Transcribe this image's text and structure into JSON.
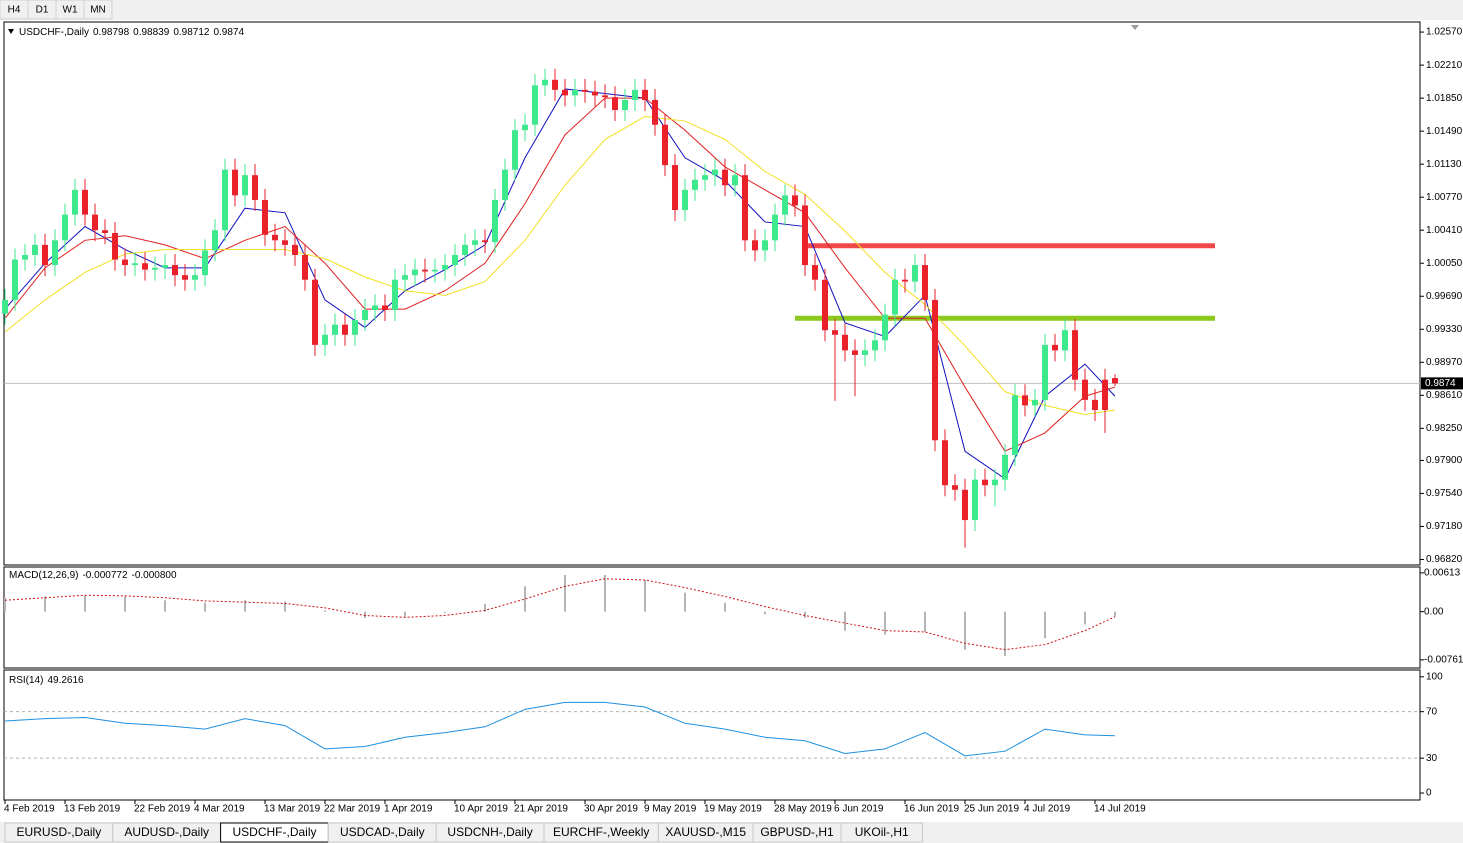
{
  "ui": {
    "timeframes": [
      "H4",
      "D1",
      "W1",
      "MN"
    ],
    "tabs": [
      "EURUSD-,Daily",
      "AUDUSD-,Daily",
      "USDCHF-,Daily",
      "USDCAD-,Daily",
      "USDCNH-,Daily",
      "EURCHF-,Weekly",
      "XAUUSD-,M15",
      "GBPUSD-,H1",
      "UKOil-,H1"
    ],
    "active_tab": 2
  },
  "chart_data": {
    "type": "candlestick",
    "ylim": [
      0.9676,
      1.0268
    ],
    "yticks": [
      {
        "value": 1.0257,
        "label": "1.02570"
      },
      {
        "value": 1.0221,
        "label": "1.02210"
      },
      {
        "value": 1.0185,
        "label": "1.01850"
      },
      {
        "value": 1.0149,
        "label": "1.01490"
      },
      {
        "value": 1.0113,
        "label": "1.01130"
      },
      {
        "value": 1.0077,
        "label": "1.00770"
      },
      {
        "value": 1.0041,
        "label": "1.00410"
      },
      {
        "value": 1.0005,
        "label": "1.00050"
      },
      {
        "value": 0.9969,
        "label": "0.99690"
      },
      {
        "value": 0.9933,
        "label": "0.99330"
      },
      {
        "value": 0.9897,
        "label": "0.98970"
      },
      {
        "value": 0.9861,
        "label": "0.98610"
      },
      {
        "value": 0.9825,
        "label": "0.98250"
      },
      {
        "value": 0.979,
        "label": "0.97900"
      },
      {
        "value": 0.9754,
        "label": "0.97540"
      },
      {
        "value": 0.9718,
        "label": "0.97180"
      },
      {
        "value": 0.9682,
        "label": "0.96820"
      }
    ],
    "categories": [
      "4 Feb 2019",
      null,
      null,
      null,
      null,
      null,
      "13 Feb 2019",
      null,
      null,
      null,
      null,
      null,
      null,
      "22 Feb 2019",
      null,
      null,
      null,
      null,
      null,
      "4 Mar 2019",
      null,
      null,
      null,
      null,
      null,
      null,
      "13 Mar 2019",
      null,
      null,
      null,
      null,
      null,
      "22 Mar 2019",
      null,
      null,
      null,
      null,
      null,
      "1 Apr 2019",
      null,
      null,
      null,
      null,
      null,
      null,
      "10 Apr 2019",
      null,
      null,
      null,
      null,
      null,
      "21 Apr 2019",
      null,
      null,
      null,
      null,
      null,
      null,
      "30 Apr 2019",
      null,
      null,
      null,
      null,
      null,
      "9 May 2019",
      null,
      null,
      null,
      null,
      null,
      "19 May 2019",
      null,
      null,
      null,
      null,
      null,
      null,
      "28 May 2019",
      null,
      null,
      null,
      null,
      null,
      "6 Jun 2019",
      null,
      null,
      null,
      null,
      null,
      null,
      "16 Jun 2019",
      null,
      null,
      null,
      null,
      null,
      "25 Jun 2019",
      null,
      null,
      null,
      null,
      null,
      "4 Jul 2019",
      null,
      null,
      null,
      null,
      null,
      null,
      "14 Jul 2019",
      null,
      null
    ],
    "series": [
      {
        "name": "USDCHF-,Daily",
        "up_color": "#3ee88c",
        "down_color": "#e8212b",
        "ohlc": [
          [
            0.995,
            0.9977,
            0.9938,
            0.9965
          ],
          [
            0.9965,
            1.0021,
            0.9953,
            1.0009
          ],
          [
            1.0009,
            1.0026,
            0.9997,
            1.0014
          ],
          [
            1.0014,
            1.0037,
            1.0002,
            1.0025
          ],
          [
            1.0025,
            1.0037,
            0.9991,
            1.0003
          ],
          [
            1.0003,
            1.0042,
            0.9991,
            1.003
          ],
          [
            1.003,
            1.007,
            1.0018,
            1.0058
          ],
          [
            1.0058,
            1.0097,
            1.0046,
            1.0085
          ],
          [
            1.0085,
            1.0097,
            1.0046,
            1.0058
          ],
          [
            1.0058,
            1.007,
            1.0029,
            1.0041
          ],
          [
            1.0041,
            1.0053,
            1.0026,
            1.0038
          ],
          [
            1.0038,
            1.005,
            0.9997,
            1.0009
          ],
          [
            1.0009,
            1.0021,
            0.9991,
            1.0003
          ],
          [
            1.0003,
            1.0017,
            0.9991,
            1.0005
          ],
          [
            1.0005,
            1.0017,
            0.9986,
            0.9998
          ],
          [
            0.9998,
            1.0012,
            0.9986,
            1.0
          ],
          [
            1.0,
            1.0015,
            0.9988,
            1.0003
          ],
          [
            1.0003,
            1.0015,
            0.998,
            0.9992
          ],
          [
            0.9992,
            1.0004,
            0.9975,
            0.9987
          ],
          [
            0.9987,
            1.0004,
            0.9975,
            0.9992
          ],
          [
            0.9992,
            1.0031,
            0.998,
            1.0019
          ],
          [
            1.0019,
            1.0053,
            1.0007,
            1.0041
          ],
          [
            1.0041,
            1.0119,
            1.0029,
            1.0107
          ],
          [
            1.0107,
            1.0119,
            1.0067,
            1.0079
          ],
          [
            1.0079,
            1.0113,
            1.0067,
            1.0101
          ],
          [
            1.0101,
            1.0113,
            1.0062,
            1.0074
          ],
          [
            1.0074,
            1.0086,
            1.0024,
            1.0036
          ],
          [
            1.0036,
            1.0048,
            1.0018,
            1.003
          ],
          [
            1.003,
            1.0042,
            1.0013,
            1.0025
          ],
          [
            1.0025,
            1.0037,
            1.0002,
            1.0014
          ],
          [
            1.0014,
            1.0026,
            0.9975,
            0.9987
          ],
          [
            0.9987,
            0.9999,
            0.9904,
            0.9916
          ],
          [
            0.9916,
            0.9939,
            0.9904,
            0.9927
          ],
          [
            0.9927,
            0.995,
            0.9915,
            0.9938
          ],
          [
            0.9938,
            0.995,
            0.9915,
            0.9927
          ],
          [
            0.9927,
            0.9955,
            0.9915,
            0.9943
          ],
          [
            0.9943,
            0.9966,
            0.9931,
            0.9954
          ],
          [
            0.9954,
            0.9971,
            0.9942,
            0.9959
          ],
          [
            0.9959,
            0.9971,
            0.9942,
            0.9954
          ],
          [
            0.9954,
            0.9999,
            0.9942,
            0.9987
          ],
          [
            0.9987,
            1.0004,
            0.9975,
            0.9992
          ],
          [
            0.9992,
            1.001,
            0.998,
            0.9998
          ],
          [
            0.9998,
            1.001,
            0.9984,
            0.9996
          ],
          [
            0.9996,
            1.001,
            0.9984,
            0.9998
          ],
          [
            0.9998,
            1.0015,
            0.9986,
            1.0003
          ],
          [
            1.0003,
            1.0026,
            0.9991,
            1.0014
          ],
          [
            1.0014,
            1.0037,
            1.0002,
            1.0025
          ],
          [
            1.0025,
            1.0042,
            1.0013,
            1.003
          ],
          [
            1.003,
            1.0042,
            1.0016,
            1.0028
          ],
          [
            1.0028,
            1.0086,
            1.0016,
            1.0074
          ],
          [
            1.0074,
            1.0119,
            1.0062,
            1.0107
          ],
          [
            1.0107,
            1.0162,
            1.0095,
            1.015
          ],
          [
            1.015,
            1.0168,
            1.0138,
            1.0156
          ],
          [
            1.0156,
            1.0211,
            1.0144,
            1.0199
          ],
          [
            1.0199,
            1.0217,
            1.0187,
            1.0205
          ],
          [
            1.0205,
            1.0217,
            1.0182,
            1.0194
          ],
          [
            1.0194,
            1.0206,
            1.0176,
            1.0188
          ],
          [
            1.0188,
            1.0206,
            1.0176,
            1.0194
          ],
          [
            1.0194,
            1.0206,
            1.018,
            1.0192
          ],
          [
            1.0192,
            1.0204,
            1.0176,
            1.0188
          ],
          [
            1.0188,
            1.02,
            1.0174,
            1.0186
          ],
          [
            1.0186,
            1.0198,
            1.016,
            1.0172
          ],
          [
            1.0172,
            1.0195,
            1.016,
            1.0183
          ],
          [
            1.0183,
            1.0206,
            1.0171,
            1.0194
          ],
          [
            1.0194,
            1.0206,
            1.0171,
            1.0183
          ],
          [
            1.0183,
            1.0195,
            1.0144,
            1.0156
          ],
          [
            1.0156,
            1.0168,
            1.01,
            1.0112
          ],
          [
            1.0112,
            1.0124,
            1.0051,
            1.0063
          ],
          [
            1.0063,
            1.0097,
            1.0051,
            1.0085
          ],
          [
            1.0085,
            1.0108,
            1.0073,
            1.0096
          ],
          [
            1.0096,
            1.0113,
            1.0084,
            1.0101
          ],
          [
            1.0101,
            1.0119,
            1.0089,
            1.0107
          ],
          [
            1.0107,
            1.0119,
            1.0078,
            1.009
          ],
          [
            1.009,
            1.0113,
            1.0078,
            1.0101
          ],
          [
            1.0101,
            1.0113,
            1.0018,
            1.003
          ],
          [
            1.003,
            1.0042,
            1.0007,
            1.0019
          ],
          [
            1.0019,
            1.0042,
            1.0007,
            1.003
          ],
          [
            1.003,
            1.007,
            1.0018,
            1.0058
          ],
          [
            1.0058,
            1.0091,
            1.0046,
            1.0079
          ],
          [
            1.0079,
            1.0091,
            1.0056,
            1.0068
          ],
          [
            1.0068,
            1.008,
            0.9991,
            1.0003
          ],
          [
            1.0003,
            1.0015,
            0.9975,
            0.9987
          ],
          [
            0.9987,
            0.9999,
            0.992,
            0.9932
          ],
          [
            0.9932,
            0.9944,
            0.9855,
            0.9927
          ],
          [
            0.9927,
            0.9939,
            0.9898,
            0.991
          ],
          [
            0.991,
            0.9922,
            0.986,
            0.9905
          ],
          [
            0.9905,
            0.9922,
            0.9893,
            0.991
          ],
          [
            0.991,
            0.9933,
            0.9898,
            0.9921
          ],
          [
            0.9921,
            0.9961,
            0.9909,
            0.9949
          ],
          [
            0.9949,
            0.9999,
            0.9937,
            0.9987
          ],
          [
            0.9987,
            0.9999,
            0.9973,
            0.9985
          ],
          [
            0.9985,
            1.0015,
            0.9973,
            1.0003
          ],
          [
            1.0003,
            1.0015,
            0.9953,
            0.9965
          ],
          [
            0.9965,
            0.9977,
            0.98,
            0.9812
          ],
          [
            0.9812,
            0.9824,
            0.9751,
            0.9763
          ],
          [
            0.9763,
            0.9775,
            0.9746,
            0.9758
          ],
          [
            0.9758,
            0.977,
            0.9695,
            0.9725
          ],
          [
            0.9725,
            0.9781,
            0.9713,
            0.9769
          ],
          [
            0.9769,
            0.9781,
            0.9751,
            0.9763
          ],
          [
            0.9763,
            0.9781,
            0.974,
            0.9769
          ],
          [
            0.9769,
            0.9808,
            0.9757,
            0.9796
          ],
          [
            0.9796,
            0.9873,
            0.9784,
            0.9861
          ],
          [
            0.9861,
            0.9873,
            0.9838,
            0.985
          ],
          [
            0.985,
            0.9868,
            0.9838,
            0.9856
          ],
          [
            0.9856,
            0.9928,
            0.9844,
            0.9916
          ],
          [
            0.9916,
            0.9928,
            0.9898,
            0.991
          ],
          [
            0.991,
            0.9944,
            0.9898,
            0.9932
          ],
          [
            0.9932,
            0.9944,
            0.9866,
            0.9878
          ],
          [
            0.9878,
            0.989,
            0.9844,
            0.9856
          ],
          [
            0.9856,
            0.9868,
            0.9833,
            0.9845
          ],
          [
            0.9878,
            0.989,
            0.982,
            0.9845
          ],
          [
            0.98798,
            0.98839,
            0.98712,
            0.9874
          ]
        ]
      }
    ],
    "levels": [
      {
        "value": 1.0024,
        "color": "#f0484a",
        "from": 80,
        "to": 121
      },
      {
        "value": 0.9945,
        "color": "#8cc81e",
        "from": 79,
        "to": 121
      }
    ],
    "sample_x": [
      0,
      4,
      8,
      12,
      16,
      20,
      24,
      28,
      32,
      36,
      40,
      44,
      48,
      52,
      56,
      60,
      64,
      68,
      72,
      76,
      80,
      84,
      88,
      92,
      96,
      100,
      104,
      108,
      111
    ],
    "overlays": [
      {
        "color": "#1010c0",
        "values": [
          0.9955,
          1.0005,
          1.0045,
          1.002,
          1.0,
          1.0,
          1.0065,
          1.006,
          0.9965,
          0.9935,
          0.9975,
          0.9998,
          1.0025,
          1.012,
          1.0195,
          1.019,
          1.0185,
          1.012,
          1.0095,
          1.005,
          1.0045,
          0.994,
          0.9925,
          0.997,
          0.98,
          0.977,
          0.986,
          0.9895,
          0.986
        ]
      },
      {
        "color": "#e02020",
        "values": [
          0.9945,
          1.0,
          1.003,
          1.0035,
          1.0025,
          1.001,
          1.003,
          1.0045,
          1.0005,
          0.9955,
          0.9955,
          0.9975,
          1.0005,
          1.007,
          1.0145,
          1.0185,
          1.0185,
          1.015,
          1.011,
          1.0085,
          1.006,
          1.0,
          0.9945,
          0.9945,
          0.987,
          0.98,
          0.982,
          0.986,
          0.987
        ]
      },
      {
        "color": "#f0e020",
        "values": [
          0.993,
          0.9965,
          0.9995,
          1.0015,
          1.002,
          1.002,
          1.002,
          1.002,
          1.001,
          0.999,
          0.9975,
          0.997,
          0.9985,
          1.003,
          1.009,
          1.014,
          1.0165,
          1.016,
          1.014,
          1.0105,
          1.008,
          1.004,
          0.9995,
          0.996,
          0.9915,
          0.9865,
          0.985,
          0.984,
          0.9845
        ]
      }
    ],
    "macd": {
      "label": "MACD(12,26,9)",
      "header_values": [
        -0.000772,
        {
          "value": -0.0008,
          "label": "-0.000800"
        }
      ],
      "ylim": [
        -0.0089,
        0.0069
      ],
      "yticks": [
        0.00613,
        {
          "value": 0,
          "label": "0.00"
        },
        -0.007612
      ],
      "histogram_color": "#b4b4b4",
      "signal_color": "#d01010",
      "histogram": [
        0.0022,
        0.0024,
        0.0026,
        0.0024,
        0.0018,
        0.0014,
        0.0018,
        0.0016,
        0.0002,
        -0.001,
        -0.0008,
        -0.0002,
        0.0012,
        0.004,
        0.0058,
        0.0058,
        0.005,
        0.003,
        0.0014,
        -0.0004,
        -0.001,
        -0.003,
        -0.0036,
        -0.0032,
        -0.006,
        -0.007,
        -0.0042,
        -0.002,
        -0.000772
      ],
      "signal": [
        0.0018,
        0.0022,
        0.0026,
        0.0025,
        0.0022,
        0.0017,
        0.0015,
        0.0013,
        0.0006,
        -0.0006,
        -0.0009,
        -0.0006,
        0.0002,
        0.002,
        0.004,
        0.0052,
        0.005,
        0.0038,
        0.0024,
        0.0008,
        -0.0006,
        -0.0018,
        -0.003,
        -0.0032,
        -0.005,
        -0.006,
        -0.0052,
        -0.003,
        -0.0008
      ]
    },
    "rsi": {
      "label": "RSI(14)",
      "header_value": 49.2616,
      "ylim": [
        -6,
        105
      ],
      "yticks": [
        100,
        70,
        30,
        0
      ],
      "levels": [
        70,
        30
      ],
      "color": "#1e90e0",
      "values": [
        62,
        64,
        65,
        60,
        58,
        55,
        64,
        58,
        38,
        40,
        48,
        52,
        57,
        72,
        78,
        78,
        74,
        60,
        55,
        48,
        45,
        34,
        38,
        52,
        32,
        36,
        55,
        50,
        49.2616
      ]
    }
  }
}
